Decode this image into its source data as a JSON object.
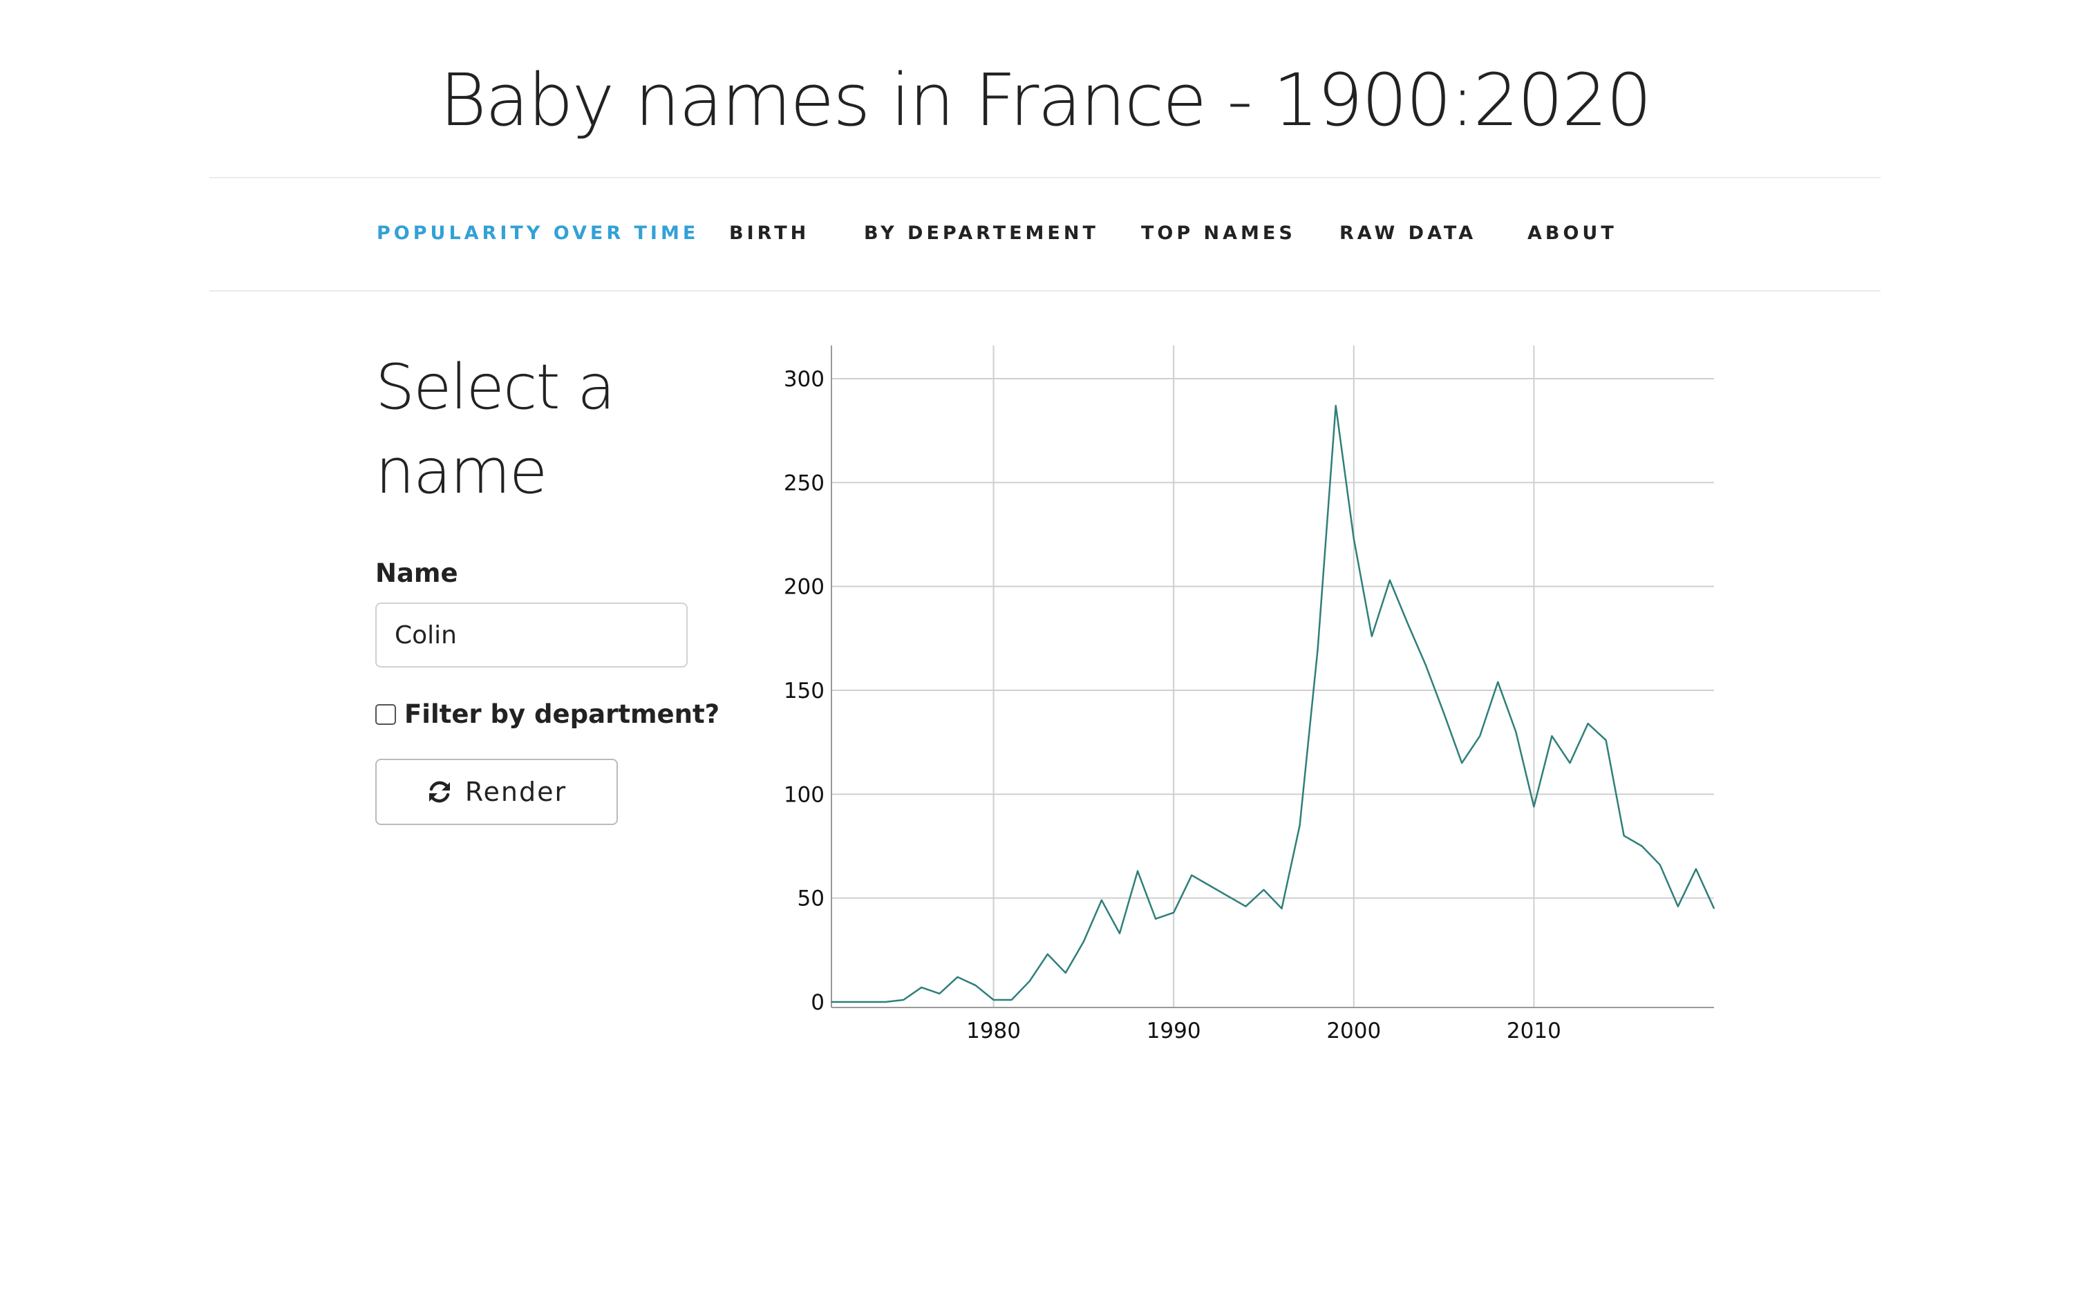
{
  "header": {
    "title": "Baby names in France - 1900:2020"
  },
  "nav": {
    "items": [
      {
        "label": "POPULARITY OVER TIME",
        "active": true
      },
      {
        "label": "BIRTH",
        "active": false
      },
      {
        "label": "BY DEPARTEMENT",
        "active": false
      },
      {
        "label": "TOP NAMES",
        "active": false
      },
      {
        "label": "RAW DATA",
        "active": false
      },
      {
        "label": "ABOUT",
        "active": false
      }
    ],
    "active_color": "#33a1d6"
  },
  "sidebar": {
    "heading": "Select a name",
    "name_label": "Name",
    "name_value": "Colin",
    "filter_label": "Filter by department?",
    "filter_checked": false,
    "render_label": "Render",
    "render_icon": "refresh-icon"
  },
  "chart_data": {
    "type": "line",
    "title": "",
    "xlabel": "",
    "ylabel": "",
    "xlim": [
      1971,
      2020
    ],
    "ylim": [
      0,
      300
    ],
    "x_ticks": [
      "1980",
      "1990",
      "2000",
      "2010"
    ],
    "y_ticks": [
      "0",
      "50",
      "100",
      "150",
      "200",
      "250",
      "300"
    ],
    "grid": true,
    "line_color": "#2f7f7a",
    "series": [
      {
        "x": [
          1971,
          1972,
          1973,
          1974,
          1975,
          1976,
          1977,
          1978,
          1979,
          1980,
          1981,
          1982,
          1983,
          1984,
          1985,
          1986,
          1987,
          1988,
          1989,
          1990,
          1991,
          1992,
          1993,
          1994,
          1995,
          1996,
          1997,
          1998,
          1999,
          2000,
          2001,
          2002,
          2003,
          2004,
          2005,
          2006,
          2007,
          2008,
          2009,
          2010,
          2011,
          2012,
          2013,
          2014,
          2015,
          2016,
          2017,
          2018,
          2019,
          2020
        ],
        "y": [
          0,
          0,
          0,
          0,
          1,
          7,
          4,
          12,
          8,
          1,
          1,
          10,
          23,
          14,
          29,
          49,
          33,
          63,
          40,
          43,
          61,
          56,
          51,
          46,
          54,
          45,
          85,
          170,
          287,
          223,
          176,
          203,
          182,
          162,
          139,
          115,
          128,
          154,
          130,
          94,
          128,
          115,
          134,
          126,
          80,
          75,
          66,
          46,
          64,
          45
        ]
      }
    ]
  }
}
